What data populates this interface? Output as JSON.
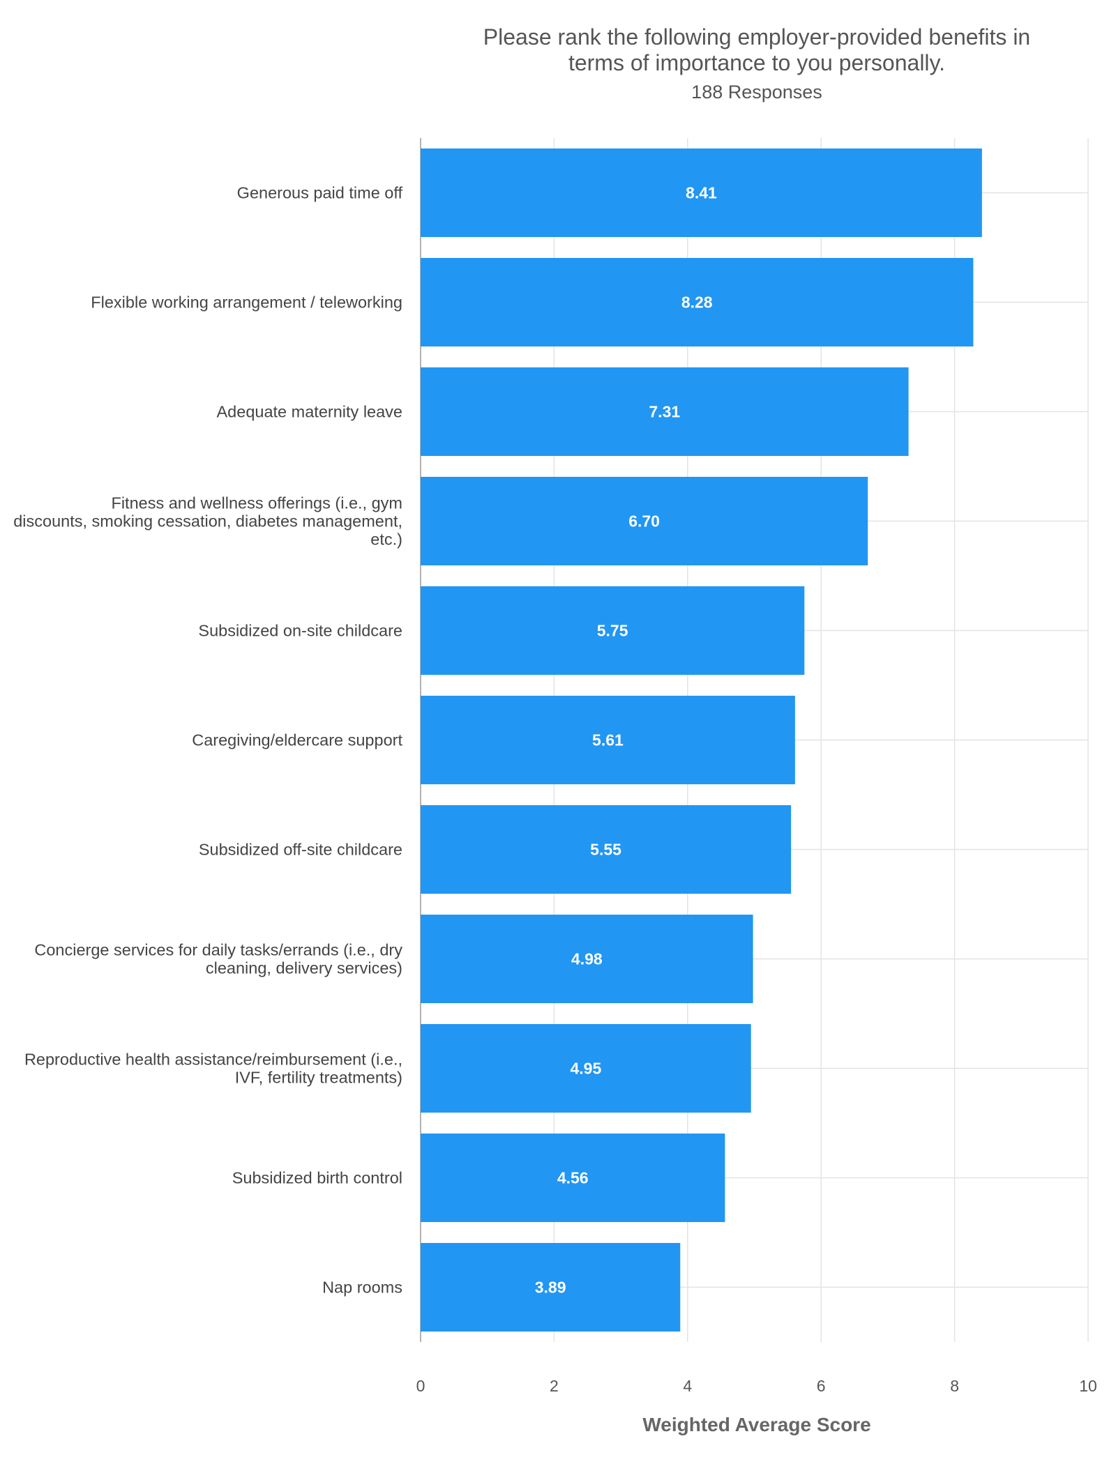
{
  "chart_data": {
    "type": "bar",
    "orientation": "horizontal",
    "title_lines": [
      "Please rank the following employer-provided benefits in",
      "terms of importance to you personally."
    ],
    "subtitle": "188 Responses",
    "xlabel": "Weighted Average Score",
    "ylabel": "",
    "xlim": [
      0,
      10
    ],
    "xticks": [
      0,
      2,
      4,
      6,
      8,
      10
    ],
    "grid": true,
    "bar_color": "#2196F3",
    "categories": [
      [
        "Generous paid time off"
      ],
      [
        "Flexible working arrangement / teleworking"
      ],
      [
        "Adequate maternity leave"
      ],
      [
        "Fitness and wellness offerings (i.e., gym",
        "discounts, smoking cessation, diabetes management,",
        "etc.)"
      ],
      [
        "Subsidized on-site childcare"
      ],
      [
        "Caregiving/eldercare support"
      ],
      [
        "Subsidized off-site childcare"
      ],
      [
        "Concierge services for daily tasks/errands (i.e., dry",
        "cleaning, delivery services)"
      ],
      [
        "Reproductive health assistance/reimbursement (i.e.,",
        "IVF, fertility treatments)"
      ],
      [
        "Subsidized birth control"
      ],
      [
        "Nap rooms"
      ]
    ],
    "values": [
      8.41,
      8.28,
      7.31,
      6.7,
      5.75,
      5.61,
      5.55,
      4.98,
      4.95,
      4.56,
      3.89
    ],
    "value_labels": [
      "8.41",
      "8.28",
      "7.31",
      "6.70",
      "5.75",
      "5.61",
      "5.55",
      "4.98",
      "4.95",
      "4.56",
      "3.89"
    ]
  }
}
